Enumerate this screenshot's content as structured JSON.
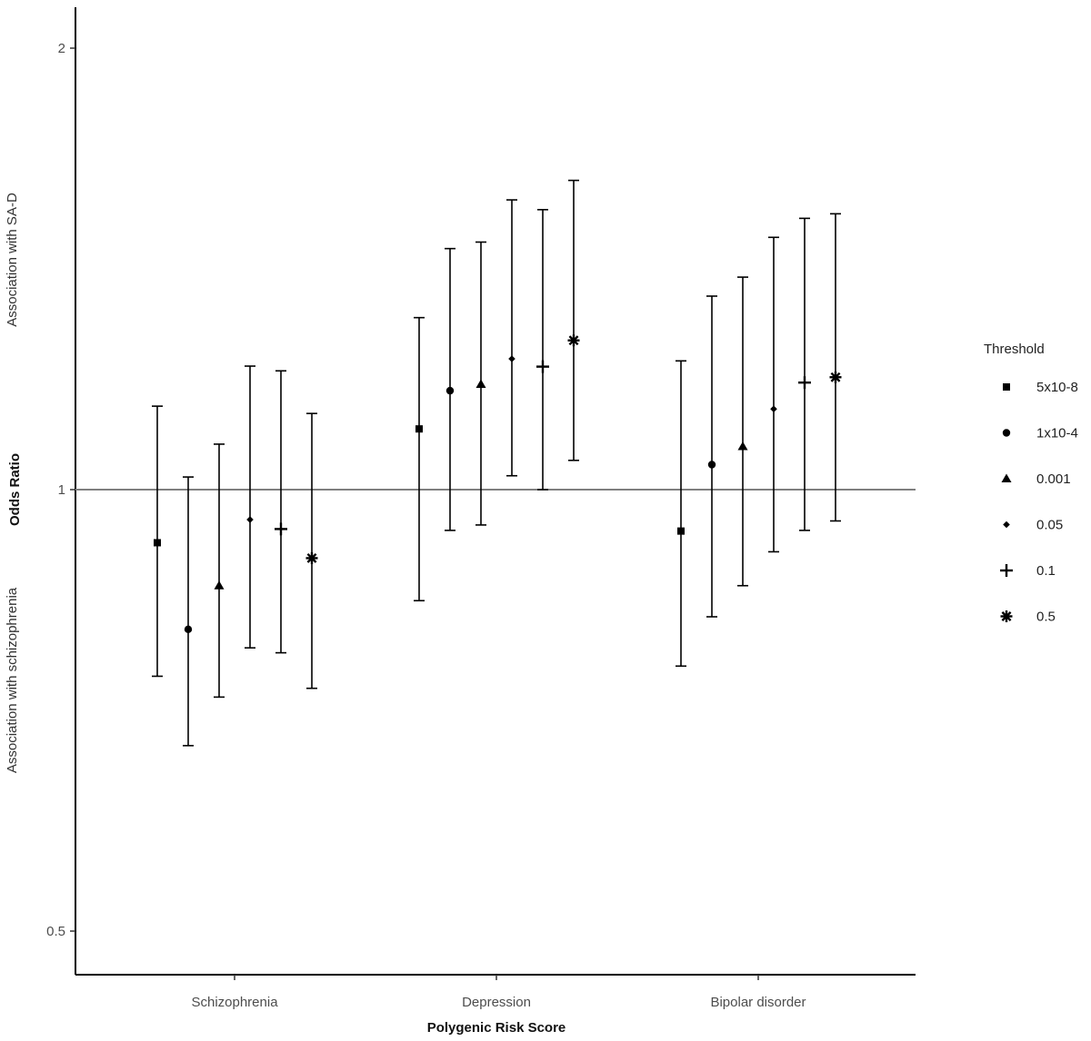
{
  "chart_data": {
    "type": "scatter",
    "subtype": "forest plot with error bars",
    "title": "",
    "xlabel": "Polygenic Risk Score",
    "ylabel": "Odds Ratio",
    "ylabel_upper": "Association with SA-D",
    "ylabel_lower": "Association with schizophrenia",
    "y_scale": "log",
    "ylim": [
      0.45,
      2.1
    ],
    "yticks": [
      {
        "value": 0.5,
        "label": "0.5"
      },
      {
        "value": 1,
        "label": "1"
      },
      {
        "value": 2,
        "label": "2"
      }
    ],
    "reference_line": 1,
    "grid": false,
    "categories": [
      "Schizophrenia",
      "Depression",
      "Bipolar disorder"
    ],
    "legend": {
      "title": "Threshold",
      "position": "right"
    },
    "series": [
      {
        "name": "5x10-8",
        "marker": "square",
        "values": [
          0.92,
          1.1,
          0.937
        ],
        "ci_low": [
          0.746,
          0.84,
          0.758
        ],
        "ci_high": [
          1.14,
          1.31,
          1.224
        ]
      },
      {
        "name": "1x10-4",
        "marker": "circle",
        "values": [
          0.803,
          1.168,
          1.04
        ],
        "ci_low": [
          0.669,
          0.938,
          0.819
        ],
        "ci_high": [
          1.02,
          1.46,
          1.355
        ]
      },
      {
        "name": "0.001",
        "marker": "triangle",
        "values": [
          0.86,
          1.18,
          1.07
        ],
        "ci_low": [
          0.722,
          0.946,
          0.86
        ],
        "ci_high": [
          1.074,
          1.475,
          1.396
        ]
      },
      {
        "name": "0.05",
        "marker": "diamond",
        "values": [
          0.954,
          1.228,
          1.135
        ],
        "ci_low": [
          0.78,
          1.022,
          0.907
        ],
        "ci_high": [
          1.214,
          1.576,
          1.486
        ]
      },
      {
        "name": "0.1",
        "marker": "plus",
        "values": [
          0.94,
          1.213,
          1.183
        ],
        "ci_low": [
          0.774,
          1.0,
          0.938
        ],
        "ci_high": [
          1.205,
          1.552,
          1.531
        ]
      },
      {
        "name": "0.5",
        "marker": "asterisk",
        "values": [
          0.898,
          1.264,
          1.193
        ],
        "ci_low": [
          0.732,
          1.047,
          0.952
        ],
        "ci_high": [
          1.127,
          1.625,
          1.542
        ]
      }
    ]
  }
}
